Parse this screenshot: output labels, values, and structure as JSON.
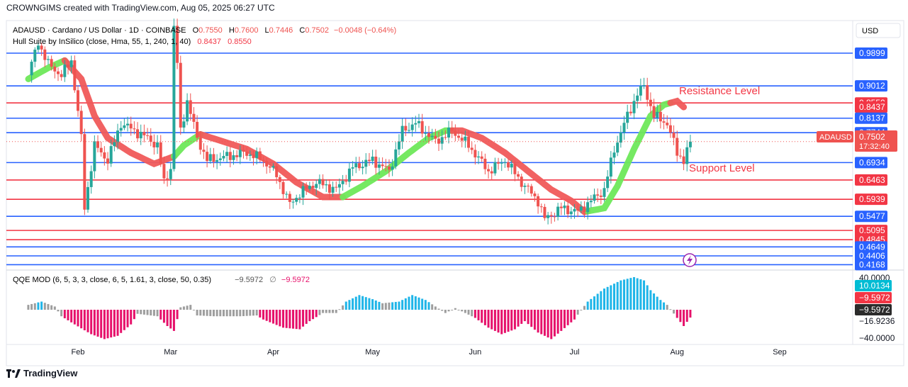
{
  "header": {
    "text": "CROWNGIMS created with TradingView.com, Aug 05, 2025 06:27 UTC"
  },
  "legend": {
    "symbol": "ADAUSD · Cardano / US Dollar · 1D · COINBASE",
    "o_label": "O",
    "o_value": "0.7550",
    "h_label": "H",
    "h_value": "0.7600",
    "l_label": "L",
    "l_value": "0.7446",
    "c_label": "C",
    "c_value": "0.7502",
    "change": "−0.0048 (−0.64%)",
    "indicator": "Hull Suite by InSilico (close, Hma, 55, 1, 240, 1, 40)",
    "ind_v1": "0.8437",
    "ind_v2": "0.8550"
  },
  "qqe_legend": {
    "label": "QQE MOD (6, 5, 3, 3, close, 6, 5, 1.61, 3, close, 50, 0.35)",
    "v1": "−9.5972",
    "sym": "∅",
    "v2": "−9.5972"
  },
  "currency": "USD",
  "annotations": {
    "resistance": "Resistance Level",
    "support": "Support Level"
  },
  "ticker_tag": {
    "symbol": "ADAUSD",
    "price": "0.7502",
    "countdown": "17:32:40"
  },
  "footer": {
    "brand": "TradingView"
  },
  "colors": {
    "blue_line": "#2962ff",
    "red_line": "#f23645",
    "up": "#26a69a",
    "down": "#ef5350",
    "hull_up": "#6ee85a",
    "hull_down": "#f05a5a",
    "qqe_up": "#1fb5e8",
    "qqe_down": "#e6106a",
    "qqe_neutral": "#9e9e9e"
  },
  "chart_data": {
    "type": "candlestick",
    "timeframe": "1D",
    "y_axis_labels": [
      "0.9899",
      "0.9012",
      "0.8550",
      "0.8437",
      "0.8137",
      "0.7744",
      "0.7502",
      "0.6934",
      "0.6463",
      "0.5939",
      "0.5477",
      "0.5095",
      "0.4845",
      "0.4649",
      "0.4406",
      "0.4168"
    ],
    "x_axis_labels": [
      "Feb",
      "Mar",
      "Apr",
      "May",
      "Jun",
      "Jul",
      "Aug",
      "Sep"
    ],
    "horizontal_levels": [
      {
        "price": 0.9899,
        "color": "blue"
      },
      {
        "price": 0.9012,
        "color": "blue"
      },
      {
        "price": 0.855,
        "color": "red",
        "label_bg": "red"
      },
      {
        "price": 0.8437,
        "color": "none",
        "label_bg": "red"
      },
      {
        "price": 0.8137,
        "color": "blue"
      },
      {
        "price": 0.7744,
        "color": "blue"
      },
      {
        "price": 0.6934,
        "color": "blue"
      },
      {
        "price": 0.6463,
        "color": "red"
      },
      {
        "price": 0.5939,
        "color": "red"
      },
      {
        "price": 0.5477,
        "color": "blue"
      },
      {
        "price": 0.5095,
        "color": "red"
      },
      {
        "price": 0.4845,
        "color": "red"
      },
      {
        "price": 0.4649,
        "color": "blue"
      },
      {
        "price": 0.4406,
        "color": "blue"
      },
      {
        "price": 0.4168,
        "color": "blue"
      }
    ],
    "last_price": 0.7502,
    "price_path": [
      [
        "2025-01-17",
        0.93
      ],
      [
        "2025-01-20",
        1.02
      ],
      [
        "2025-01-23",
        0.96
      ],
      [
        "2025-01-27",
        0.93
      ],
      [
        "2025-01-30",
        0.97
      ],
      [
        "2025-02-02",
        0.76
      ],
      [
        "2025-02-03",
        0.57
      ],
      [
        "2025-02-06",
        0.74
      ],
      [
        "2025-02-10",
        0.7
      ],
      [
        "2025-02-14",
        0.8
      ],
      [
        "2025-02-18",
        0.78
      ],
      [
        "2025-02-22",
        0.76
      ],
      [
        "2025-02-25",
        0.74
      ],
      [
        "2025-02-27",
        0.64
      ],
      [
        "2025-03-01",
        0.68
      ],
      [
        "2025-03-02",
        1.06
      ],
      [
        "2025-03-03",
        0.96
      ],
      [
        "2025-03-04",
        0.78
      ],
      [
        "2025-03-06",
        0.86
      ],
      [
        "2025-03-09",
        0.76
      ],
      [
        "2025-03-12",
        0.7
      ],
      [
        "2025-03-18",
        0.71
      ],
      [
        "2025-03-24",
        0.72
      ],
      [
        "2025-03-29",
        0.7
      ],
      [
        "2025-04-02",
        0.66
      ],
      [
        "2025-04-06",
        0.58
      ],
      [
        "2025-04-09",
        0.61
      ],
      [
        "2025-04-14",
        0.64
      ],
      [
        "2025-04-20",
        0.62
      ],
      [
        "2025-04-25",
        0.68
      ],
      [
        "2025-05-01",
        0.7
      ],
      [
        "2025-05-06",
        0.67
      ],
      [
        "2025-05-10",
        0.78
      ],
      [
        "2025-05-14",
        0.8
      ],
      [
        "2025-05-20",
        0.75
      ],
      [
        "2025-05-25",
        0.78
      ],
      [
        "2025-05-30",
        0.74
      ],
      [
        "2025-06-05",
        0.67
      ],
      [
        "2025-06-10",
        0.7
      ],
      [
        "2025-06-15",
        0.64
      ],
      [
        "2025-06-20",
        0.59
      ],
      [
        "2025-06-22",
        0.54
      ],
      [
        "2025-06-27",
        0.57
      ],
      [
        "2025-07-02",
        0.56
      ],
      [
        "2025-07-06",
        0.59
      ],
      [
        "2025-07-10",
        0.62
      ],
      [
        "2025-07-13",
        0.73
      ],
      [
        "2025-07-17",
        0.82
      ],
      [
        "2025-07-20",
        0.88
      ],
      [
        "2025-07-22",
        0.9
      ],
      [
        "2025-07-25",
        0.82
      ],
      [
        "2025-07-29",
        0.8
      ],
      [
        "2025-08-01",
        0.72
      ],
      [
        "2025-08-03",
        0.7
      ],
      [
        "2025-08-05",
        0.7502
      ]
    ],
    "hull_path": [
      [
        "2025-01-17",
        0.92
      ],
      [
        "2025-01-23",
        0.95
      ],
      [
        "2025-01-28",
        0.97
      ],
      [
        "2025-02-02",
        0.92
      ],
      [
        "2025-02-06",
        0.82
      ],
      [
        "2025-02-10",
        0.76
      ],
      [
        "2025-02-17",
        0.72
      ],
      [
        "2025-02-24",
        0.69
      ],
      [
        "2025-03-02",
        0.71
      ],
      [
        "2025-03-05",
        0.74
      ],
      [
        "2025-03-10",
        0.77
      ],
      [
        "2025-03-17",
        0.75
      ],
      [
        "2025-03-24",
        0.73
      ],
      [
        "2025-04-01",
        0.69
      ],
      [
        "2025-04-08",
        0.64
      ],
      [
        "2025-04-16",
        0.6
      ],
      [
        "2025-04-22",
        0.6
      ],
      [
        "2025-04-28",
        0.63
      ],
      [
        "2025-05-05",
        0.67
      ],
      [
        "2025-05-12",
        0.72
      ],
      [
        "2025-05-18",
        0.76
      ],
      [
        "2025-05-23",
        0.78
      ],
      [
        "2025-05-28",
        0.78
      ],
      [
        "2025-06-03",
        0.76
      ],
      [
        "2025-06-10",
        0.72
      ],
      [
        "2025-06-17",
        0.67
      ],
      [
        "2025-06-24",
        0.62
      ],
      [
        "2025-06-30",
        0.59
      ],
      [
        "2025-07-04",
        0.56
      ],
      [
        "2025-07-10",
        0.57
      ],
      [
        "2025-07-14",
        0.63
      ],
      [
        "2025-07-19",
        0.73
      ],
      [
        "2025-07-24",
        0.82
      ],
      [
        "2025-07-28",
        0.85
      ],
      [
        "2025-08-01",
        0.86
      ],
      [
        "2025-08-03",
        0.8437
      ]
    ],
    "hull_trend": [
      {
        "from": "2025-01-17",
        "to": "2025-01-28",
        "dir": "up"
      },
      {
        "from": "2025-01-28",
        "to": "2025-03-02",
        "dir": "down"
      },
      {
        "from": "2025-03-02",
        "to": "2025-03-10",
        "dir": "up"
      },
      {
        "from": "2025-03-10",
        "to": "2025-04-22",
        "dir": "down"
      },
      {
        "from": "2025-04-22",
        "to": "2025-05-25",
        "dir": "up"
      },
      {
        "from": "2025-05-25",
        "to": "2025-07-05",
        "dir": "down"
      },
      {
        "from": "2025-07-05",
        "to": "2025-07-30",
        "dir": "up"
      },
      {
        "from": "2025-07-30",
        "to": "2025-08-03",
        "dir": "down"
      }
    ],
    "qqe": {
      "y_axis_labels": [
        "40.0000",
        "10.0134",
        "−9.5972",
        "−9.5972",
        "−16.9236",
        "−40.0000"
      ],
      "last_value": -9.5972,
      "bars": [
        [
          "2025-01-17",
          6
        ],
        [
          "2025-01-21",
          10
        ],
        [
          "2025-01-25",
          4
        ],
        [
          "2025-01-27",
          -8
        ],
        [
          "2025-01-31",
          -18
        ],
        [
          "2025-02-05",
          -30
        ],
        [
          "2025-02-09",
          -36
        ],
        [
          "2025-02-13",
          -32
        ],
        [
          "2025-02-17",
          -18
        ],
        [
          "2025-02-19",
          -5
        ],
        [
          "2025-02-25",
          -8
        ],
        [
          "2025-02-28",
          -20
        ],
        [
          "2025-03-02",
          -26
        ],
        [
          "2025-03-04",
          3
        ],
        [
          "2025-03-07",
          6
        ],
        [
          "2025-03-09",
          -7
        ],
        [
          "2025-03-14",
          -8
        ],
        [
          "2025-03-22",
          -8
        ],
        [
          "2025-03-27",
          -7
        ],
        [
          "2025-03-29",
          -12
        ],
        [
          "2025-04-04",
          -22
        ],
        [
          "2025-04-09",
          -24
        ],
        [
          "2025-04-12",
          -14
        ],
        [
          "2025-04-16",
          -4
        ],
        [
          "2025-04-20",
          -4
        ],
        [
          "2025-04-23",
          10
        ],
        [
          "2025-04-27",
          18
        ],
        [
          "2025-05-01",
          13
        ],
        [
          "2025-05-04",
          8
        ],
        [
          "2025-05-09",
          10
        ],
        [
          "2025-05-13",
          18
        ],
        [
          "2025-05-17",
          12
        ],
        [
          "2025-05-20",
          4
        ],
        [
          "2025-05-23",
          -4
        ],
        [
          "2025-05-26",
          2
        ],
        [
          "2025-06-01",
          -10
        ],
        [
          "2025-06-05",
          -22
        ],
        [
          "2025-06-09",
          -30
        ],
        [
          "2025-06-13",
          -24
        ],
        [
          "2025-06-16",
          -14
        ],
        [
          "2025-06-20",
          -28
        ],
        [
          "2025-06-24",
          -36
        ],
        [
          "2025-06-27",
          -26
        ],
        [
          "2025-07-01",
          -12
        ],
        [
          "2025-07-02",
          -6
        ],
        [
          "2025-07-05",
          10
        ],
        [
          "2025-07-10",
          26
        ],
        [
          "2025-07-15",
          36
        ],
        [
          "2025-07-19",
          40
        ],
        [
          "2025-07-22",
          36
        ],
        [
          "2025-07-24",
          24
        ],
        [
          "2025-07-27",
          12
        ],
        [
          "2025-07-29",
          6
        ],
        [
          "2025-08-01",
          -10
        ],
        [
          "2025-08-03",
          -20
        ],
        [
          "2025-08-05",
          -9.6
        ]
      ]
    }
  }
}
